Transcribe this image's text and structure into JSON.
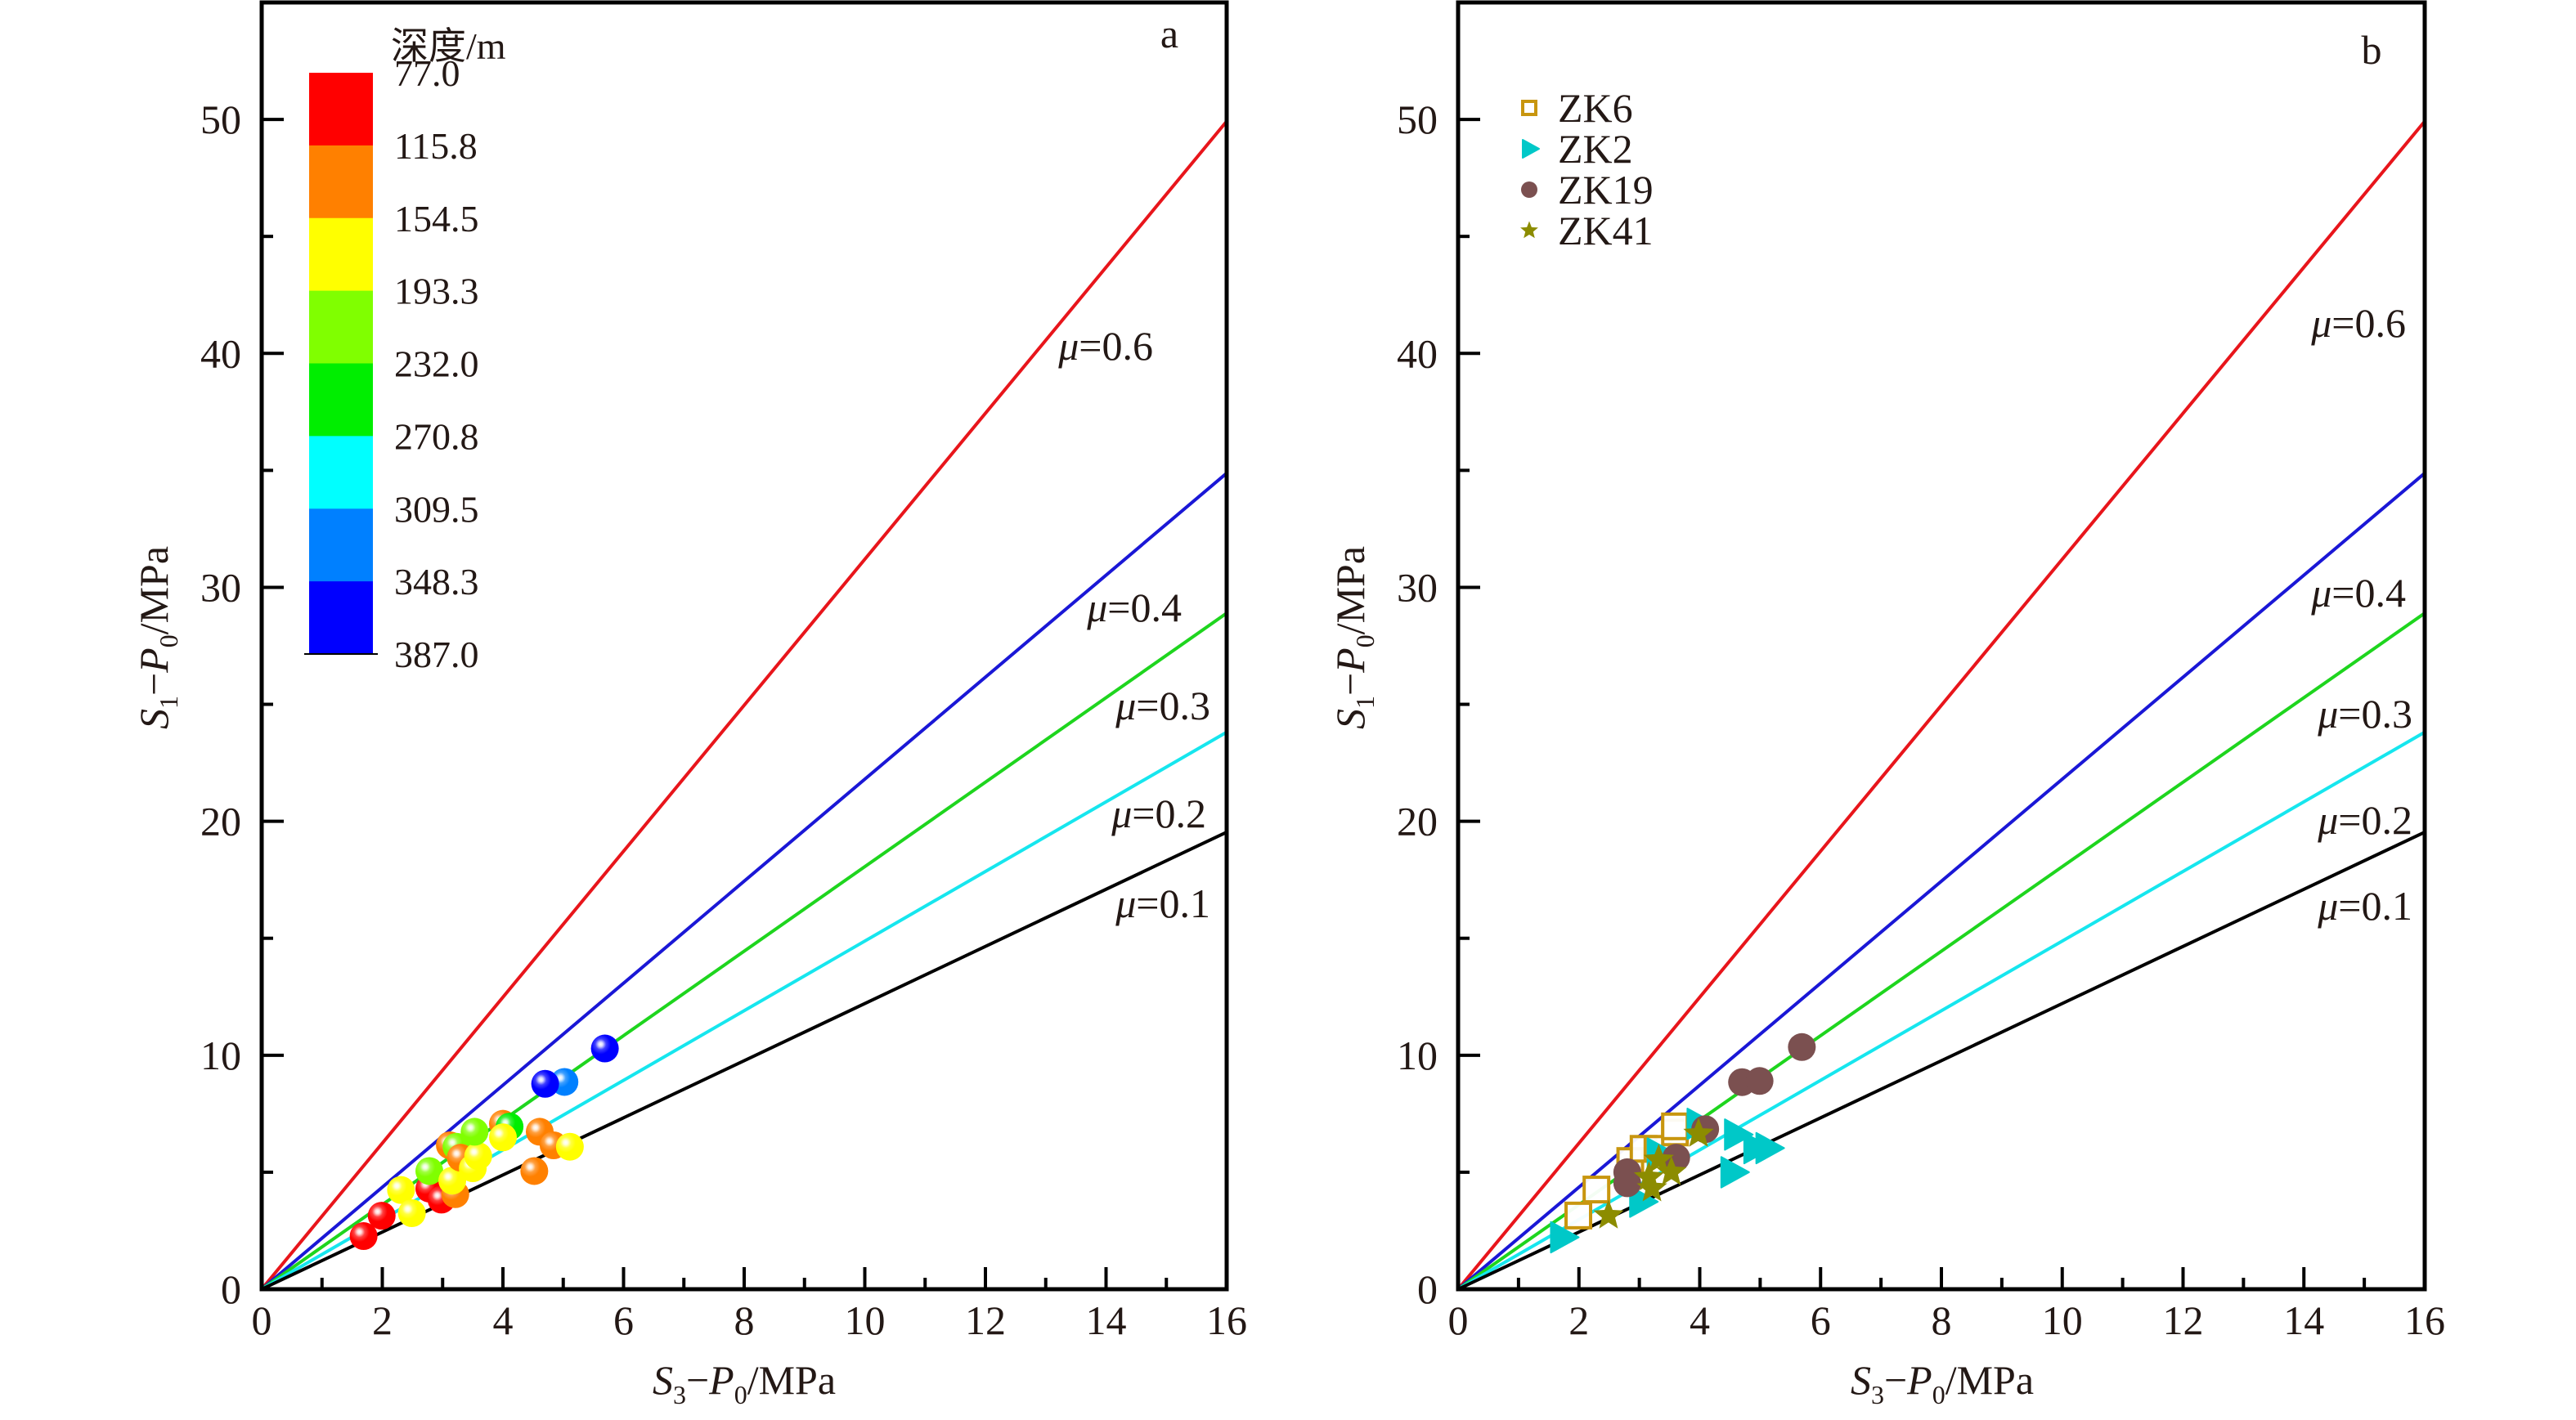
{
  "figure": {
    "panels": [
      "a",
      "b"
    ]
  },
  "chart_data": [
    {
      "type": "scatter",
      "panel_label": "a",
      "xlabel": "S3−P0/MPa",
      "xlabel_parts": {
        "s": "S",
        "s_sub": "3",
        "dash": "−",
        "p": "P",
        "p_sub": "0",
        "unit": "/MPa"
      },
      "ylabel": "S1−P0/MPa",
      "ylabel_parts": {
        "s": "S",
        "s_sub": "1",
        "dash": "−",
        "p": "P",
        "p_sub": "0",
        "unit": "/MPa"
      },
      "xlim": [
        0,
        16
      ],
      "ylim": [
        0,
        55
      ],
      "xticks": [
        0,
        2,
        4,
        6,
        8,
        10,
        12,
        14,
        16
      ],
      "yticks": [
        0,
        10,
        20,
        30,
        40,
        50
      ],
      "grid": false,
      "friction_lines": [
        {
          "mu": 0.6,
          "label": "μ=0.6",
          "slope": 3.12,
          "color": "#e8151b"
        },
        {
          "mu": 0.4,
          "label": "μ=0.4",
          "slope": 2.18,
          "color": "#1a17d6"
        },
        {
          "mu": 0.3,
          "label": "μ=0.3",
          "slope": 1.806,
          "color": "#1ed51e"
        },
        {
          "mu": 0.2,
          "label": "μ=0.2",
          "slope": 1.488,
          "color": "#16e6ee"
        },
        {
          "mu": 0.1,
          "label": "μ=0.1",
          "slope": 1.221,
          "color": "#000000"
        }
      ],
      "colorbar": {
        "title": "深度/m",
        "placement": "top-left",
        "ticks": [
          "77.0",
          "115.8",
          "154.5",
          "193.3",
          "232.0",
          "270.8",
          "309.5",
          "348.3",
          "387.0"
        ],
        "colors": [
          "#ff0000",
          "#ff8000",
          "#ffff00",
          "#80ff00",
          "#00ee00",
          "#00ffff",
          "#0080ff",
          "#0000ff"
        ]
      },
      "points": [
        {
          "x": 1.69,
          "y": 2.27,
          "depth_class": 0
        },
        {
          "x": 1.99,
          "y": 3.14,
          "depth_class": 0
        },
        {
          "x": 2.31,
          "y": 4.24,
          "depth_class": 2
        },
        {
          "x": 2.49,
          "y": 3.25,
          "depth_class": 2
        },
        {
          "x": 2.78,
          "y": 4.3,
          "depth_class": 0
        },
        {
          "x": 2.98,
          "y": 3.83,
          "depth_class": 0
        },
        {
          "x": 2.78,
          "y": 5.05,
          "depth_class": 3
        },
        {
          "x": 3.21,
          "y": 4.06,
          "depth_class": 1
        },
        {
          "x": 3.16,
          "y": 4.64,
          "depth_class": 2
        },
        {
          "x": 3.12,
          "y": 6.15,
          "depth_class": 1
        },
        {
          "x": 3.23,
          "y": 6.09,
          "depth_class": 3
        },
        {
          "x": 3.3,
          "y": 5.62,
          "depth_class": 1
        },
        {
          "x": 3.5,
          "y": 5.17,
          "depth_class": 2
        },
        {
          "x": 3.59,
          "y": 5.69,
          "depth_class": 2
        },
        {
          "x": 3.53,
          "y": 6.73,
          "depth_class": 3
        },
        {
          "x": 4.0,
          "y": 7.07,
          "depth_class": 1
        },
        {
          "x": 4.11,
          "y": 6.95,
          "depth_class": 4
        },
        {
          "x": 4.0,
          "y": 6.49,
          "depth_class": 2
        },
        {
          "x": 4.52,
          "y": 5.05,
          "depth_class": 1
        },
        {
          "x": 4.61,
          "y": 6.73,
          "depth_class": 1
        },
        {
          "x": 4.84,
          "y": 6.15,
          "depth_class": 1
        },
        {
          "x": 5.11,
          "y": 6.09,
          "depth_class": 2
        },
        {
          "x": 5.02,
          "y": 8.86,
          "depth_class": 6
        },
        {
          "x": 4.7,
          "y": 8.78,
          "depth_class": 7
        },
        {
          "x": 5.69,
          "y": 10.29,
          "depth_class": 7
        }
      ]
    },
    {
      "type": "scatter",
      "panel_label": "b",
      "xlabel": "S3−P0/MPa",
      "xlabel_parts": {
        "s": "S",
        "s_sub": "3",
        "dash": "−",
        "p": "P",
        "p_sub": "0",
        "unit": "/MPa"
      },
      "ylabel": "S1−P0/MPa",
      "ylabel_parts": {
        "s": "S",
        "s_sub": "1",
        "dash": "−",
        "p": "P",
        "p_sub": "0",
        "unit": "/MPa"
      },
      "xlim": [
        0,
        16
      ],
      "ylim": [
        0,
        55
      ],
      "xticks": [
        0,
        2,
        4,
        6,
        8,
        10,
        12,
        14,
        16
      ],
      "yticks": [
        0,
        10,
        20,
        30,
        40,
        50
      ],
      "grid": false,
      "legend_placement": "top-left",
      "friction_lines": [
        {
          "mu": 0.6,
          "label": "μ=0.6",
          "slope": 3.12,
          "color": "#e8151b"
        },
        {
          "mu": 0.4,
          "label": "μ=0.4",
          "slope": 2.18,
          "color": "#1a17d6"
        },
        {
          "mu": 0.3,
          "label": "μ=0.3",
          "slope": 1.806,
          "color": "#1ed51e"
        },
        {
          "mu": 0.2,
          "label": "μ=0.2",
          "slope": 1.488,
          "color": "#16e6ee"
        },
        {
          "mu": 0.1,
          "label": "μ=0.1",
          "slope": 1.221,
          "color": "#000000"
        }
      ],
      "series": [
        {
          "name": "ZK6",
          "marker": "open-square",
          "color": "#c8960f",
          "points": [
            {
              "x": 1.99,
              "y": 3.15
            },
            {
              "x": 2.29,
              "y": 4.26
            },
            {
              "x": 2.85,
              "y": 5.48
            },
            {
              "x": 3.07,
              "y": 6.0
            },
            {
              "x": 3.3,
              "y": 6.0
            },
            {
              "x": 3.59,
              "y": 6.7
            },
            {
              "x": 3.59,
              "y": 6.96
            }
          ]
        },
        {
          "name": "ZK2",
          "marker": "triangle-right",
          "color": "#00c8c8",
          "points": [
            {
              "x": 1.72,
              "y": 2.22
            },
            {
              "x": 3.03,
              "y": 3.74
            },
            {
              "x": 3.32,
              "y": 5.8
            },
            {
              "x": 3.98,
              "y": 7.07
            },
            {
              "x": 4.54,
              "y": 5.0
            },
            {
              "x": 4.6,
              "y": 6.61
            },
            {
              "x": 4.92,
              "y": 6.03
            },
            {
              "x": 5.12,
              "y": 6.03
            }
          ]
        },
        {
          "name": "ZK19",
          "marker": "circle",
          "color": "#7b5050",
          "points": [
            {
              "x": 2.8,
              "y": 5.0
            },
            {
              "x": 2.8,
              "y": 4.53
            },
            {
              "x": 3.61,
              "y": 5.62
            },
            {
              "x": 4.09,
              "y": 6.84
            },
            {
              "x": 4.7,
              "y": 8.85
            },
            {
              "x": 4.99,
              "y": 8.9
            },
            {
              "x": 5.69,
              "y": 10.35
            }
          ]
        },
        {
          "name": "ZK41",
          "marker": "star",
          "color": "#8c8c00",
          "points": [
            {
              "x": 2.49,
              "y": 3.15
            },
            {
              "x": 3.21,
              "y": 4.31
            },
            {
              "x": 3.16,
              "y": 4.78
            },
            {
              "x": 3.32,
              "y": 5.53
            },
            {
              "x": 3.53,
              "y": 5.0
            },
            {
              "x": 3.98,
              "y": 6.64
            }
          ]
        }
      ]
    }
  ]
}
